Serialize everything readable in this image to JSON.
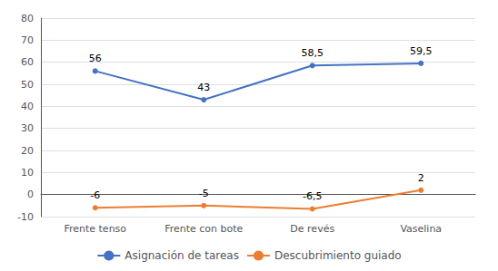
{
  "chart_data": {
    "type": "line",
    "categories": [
      "Frente tenso",
      "Frente con bote",
      "De revés",
      "Vaselina"
    ],
    "series": [
      {
        "name": "Asignación de tareas",
        "color": "#4472C4",
        "marker": "circle",
        "values": [
          56,
          43,
          58.5,
          59.5
        ],
        "value_labels": [
          "56",
          "43",
          "58,5",
          "59,5"
        ]
      },
      {
        "name": "Descubrimiento guiado",
        "color": "#ED7D31",
        "marker": "circle",
        "values": [
          -6,
          -5,
          -6.5,
          2
        ],
        "value_labels": [
          "-6",
          "-5",
          "-6,5",
          "2"
        ]
      }
    ],
    "ylim": [
      -10,
      80
    ],
    "yticks": [
      -10,
      0,
      10,
      20,
      30,
      40,
      50,
      60,
      70,
      80
    ],
    "grid": true,
    "legend": "bottom",
    "data_labels": true
  }
}
